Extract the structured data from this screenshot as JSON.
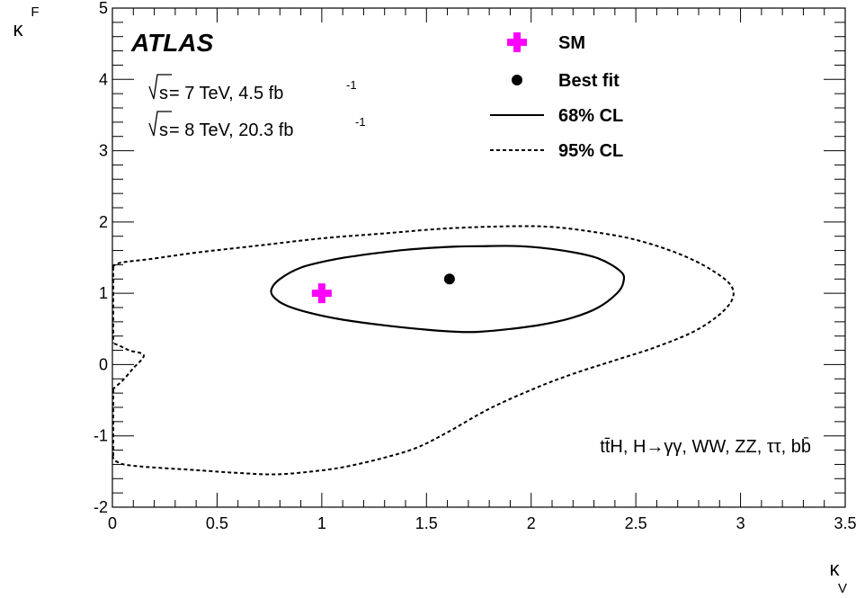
{
  "chart_data": {
    "type": "scatter",
    "x_axis": {
      "label_main": "κ",
      "label_sub": "V",
      "range": [
        0,
        3.5
      ],
      "tick_labels": [
        "0",
        "0.5",
        "1",
        "1.5",
        "2",
        "2.5",
        "3",
        "3.5"
      ],
      "tick_values": [
        0,
        0.5,
        1,
        1.5,
        2,
        2.5,
        3,
        3.5
      ]
    },
    "y_axis": {
      "label_main": "κ",
      "label_sub": "F",
      "range": [
        -2,
        5
      ],
      "tick_labels": [
        "-2",
        "-1",
        "0",
        "1",
        "2",
        "3",
        "4",
        "5"
      ],
      "tick_values": [
        -2,
        -1,
        0,
        1,
        2,
        3,
        4,
        5
      ]
    },
    "grid": false,
    "experiment_label": "ATLAS",
    "energy_lines": [
      {
        "sqrt_s": "s",
        "energy": " = 7 TeV,  4.5 fb",
        "exponent": "-1"
      },
      {
        "sqrt_s": "s",
        "energy": " = 8 TeV,  20.3 fb",
        "exponent": "-1"
      }
    ],
    "channels_label": "tt̄H, H→γγ, WW, ZZ, ττ, bb̄",
    "legend": {
      "position": "top-right",
      "sm": "SM",
      "best_fit": "Best fit",
      "cl68": "68% CL",
      "cl95": "95% CL"
    },
    "colors": {
      "sm_marker": "#ff00ff",
      "line": "#000000"
    },
    "points": {
      "sm": {
        "x": 1.0,
        "y": 1.0
      },
      "best_fit": {
        "x": 1.61,
        "y": 1.2
      }
    },
    "contour_68": [
      [
        0.76,
        1.06
      ],
      [
        0.8,
        1.2
      ],
      [
        0.9,
        1.36
      ],
      [
        1.05,
        1.47
      ],
      [
        1.2,
        1.54
      ],
      [
        1.4,
        1.61
      ],
      [
        1.6,
        1.65
      ],
      [
        1.75,
        1.66
      ],
      [
        1.95,
        1.66
      ],
      [
        2.15,
        1.6
      ],
      [
        2.32,
        1.49
      ],
      [
        2.43,
        1.3
      ],
      [
        2.44,
        1.15
      ],
      [
        2.41,
        1.0
      ],
      [
        2.32,
        0.8
      ],
      [
        2.2,
        0.66
      ],
      [
        2.05,
        0.56
      ],
      [
        1.9,
        0.5
      ],
      [
        1.75,
        0.46
      ],
      [
        1.65,
        0.46
      ],
      [
        1.5,
        0.49
      ],
      [
        1.3,
        0.55
      ],
      [
        1.1,
        0.63
      ],
      [
        0.95,
        0.72
      ],
      [
        0.83,
        0.83
      ],
      [
        0.77,
        0.95
      ],
      [
        0.76,
        1.06
      ]
    ],
    "contour_95": [
      [
        0.0,
        1.37
      ],
      [
        0.04,
        1.43
      ],
      [
        0.18,
        1.48
      ],
      [
        0.4,
        1.57
      ],
      [
        0.7,
        1.67
      ],
      [
        1.0,
        1.77
      ],
      [
        1.3,
        1.84
      ],
      [
        1.6,
        1.91
      ],
      [
        1.9,
        1.94
      ],
      [
        2.1,
        1.93
      ],
      [
        2.3,
        1.86
      ],
      [
        2.5,
        1.75
      ],
      [
        2.7,
        1.56
      ],
      [
        2.86,
        1.33
      ],
      [
        2.96,
        1.08
      ],
      [
        2.94,
        0.82
      ],
      [
        2.8,
        0.5
      ],
      [
        2.6,
        0.25
      ],
      [
        2.4,
        0.06
      ],
      [
        2.2,
        -0.13
      ],
      [
        2.02,
        -0.33
      ],
      [
        1.8,
        -0.62
      ],
      [
        1.6,
        -0.95
      ],
      [
        1.45,
        -1.17
      ],
      [
        1.28,
        -1.32
      ],
      [
        1.1,
        -1.44
      ],
      [
        0.95,
        -1.5
      ],
      [
        0.78,
        -1.54
      ],
      [
        0.6,
        -1.52
      ],
      [
        0.4,
        -1.48
      ],
      [
        0.1,
        -1.42
      ],
      [
        0.02,
        -1.36
      ],
      [
        0.0,
        -1.28
      ]
    ],
    "contour_95_spike": [
      [
        0.0,
        -0.35
      ],
      [
        0.05,
        -0.22
      ],
      [
        0.1,
        -0.05
      ],
      [
        0.15,
        0.13
      ],
      [
        0.08,
        0.2
      ],
      [
        0.03,
        0.27
      ],
      [
        0.0,
        0.3
      ]
    ]
  }
}
